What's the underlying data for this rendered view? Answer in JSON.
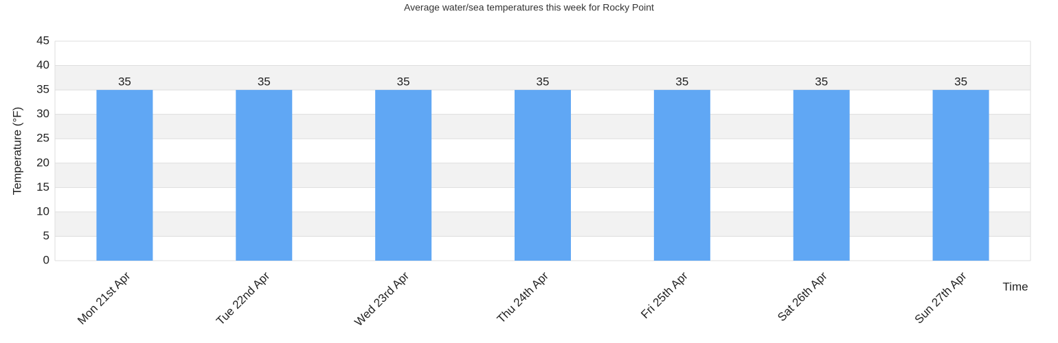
{
  "chart_data": {
    "type": "bar",
    "title": "Average water/sea temperatures this week for Rocky Point",
    "x_label": "Time",
    "y_label": "Temperature (°F)",
    "categories": [
      "Mon 21st Apr",
      "Tue 22nd Apr",
      "Wed 23rd Apr",
      "Thu 24th Apr",
      "Fri 25th Apr",
      "Sat 26th Apr",
      "Sun 27th Apr"
    ],
    "values": [
      35,
      35,
      35,
      35,
      35,
      35,
      35
    ],
    "color": "#60a7f4",
    "ylim": [
      0,
      45
    ],
    "yticks": [
      0,
      5,
      10,
      15,
      20,
      25,
      30,
      35,
      40,
      45
    ],
    "grid": true
  }
}
